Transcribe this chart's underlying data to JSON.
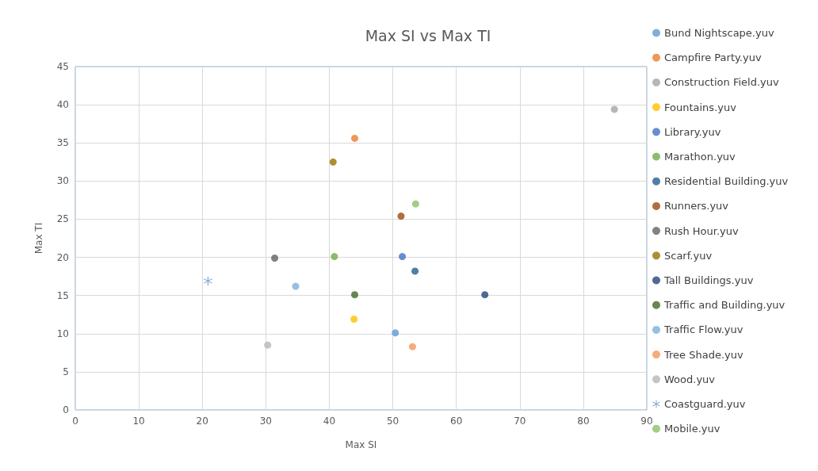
{
  "chart_data": {
    "type": "scatter",
    "title": "Max SI vs Max TI",
    "xlabel": "Max SI",
    "ylabel": "Max TI",
    "xlim": [
      0,
      90
    ],
    "xticks": [
      0,
      10,
      20,
      30,
      40,
      50,
      60,
      70,
      80,
      90
    ],
    "ylim": [
      0,
      45
    ],
    "yticks": [
      0,
      5,
      10,
      15,
      20,
      25,
      30,
      35,
      40,
      45
    ],
    "grid": true,
    "legend": "right",
    "marker": "circle",
    "series": [
      {
        "name": "Bund Nightscape.yuv",
        "color": "#5b9bd5",
        "x": [
          50.4
        ],
        "values": [
          10.1
        ]
      },
      {
        "name": "Campfire Party.yuv",
        "color": "#ed7d31",
        "x": [
          44.0
        ],
        "values": [
          35.6
        ]
      },
      {
        "name": "Construction Field.yuv",
        "color": "#a5a5a5",
        "x": [
          84.9
        ],
        "values": [
          39.4
        ]
      },
      {
        "name": "Fountains.yuv",
        "color": "#ffc000",
        "x": [
          43.9
        ],
        "values": [
          11.9
        ]
      },
      {
        "name": "Library.yuv",
        "color": "#4472c4",
        "x": [
          51.5
        ],
        "values": [
          20.1
        ]
      },
      {
        "name": "Marathon.yuv",
        "color": "#70ad47",
        "x": [
          40.8
        ],
        "values": [
          20.1
        ]
      },
      {
        "name": "Residential Building.yuv",
        "color": "#255e91",
        "x": [
          53.5
        ],
        "values": [
          18.2
        ]
      },
      {
        "name": "Runners.yuv",
        "color": "#9e480e",
        "x": [
          51.3
        ],
        "values": [
          25.4
        ]
      },
      {
        "name": "Rush Hour.yuv",
        "color": "#636363",
        "x": [
          31.4
        ],
        "values": [
          19.9
        ]
      },
      {
        "name": "Scarf.yuv",
        "color": "#997300",
        "x": [
          40.6
        ],
        "values": [
          32.5
        ]
      },
      {
        "name": "Tall Buildings.yuv",
        "color": "#264478",
        "x": [
          64.5
        ],
        "values": [
          15.1
        ]
      },
      {
        "name": "Traffic and Building.yuv",
        "color": "#43682b",
        "x": [
          44.0
        ],
        "values": [
          15.1
        ]
      },
      {
        "name": "Traffic Flow.yuv",
        "color": "#7cafdd",
        "x": [
          34.7
        ],
        "values": [
          16.2
        ]
      },
      {
        "name": "Tree Shade.yuv",
        "color": "#f1975a",
        "x": [
          53.1
        ],
        "values": [
          8.3
        ]
      },
      {
        "name": "Wood.yuv",
        "color": "#b7b7b7",
        "x": [
          30.3
        ],
        "values": [
          8.5
        ]
      },
      {
        "name": "Coastguard.yuv",
        "color": "#698ed0",
        "marker": "star",
        "x": [
          20.9
        ],
        "values": [
          16.9
        ]
      },
      {
        "name": "Mobile.yuv",
        "color": "#8cc168",
        "x": [
          53.6
        ],
        "values": [
          27.0
        ]
      }
    ]
  }
}
